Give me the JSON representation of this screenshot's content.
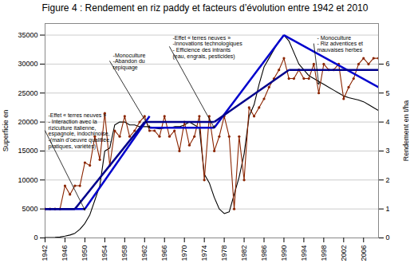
{
  "chart_data": {
    "type": "line",
    "title": "Figure 4 : Rendement en riz paddy et facteurs d’évolution entre 1942 et 2010",
    "x": [
      1942,
      1943,
      1944,
      1945,
      1946,
      1947,
      1948,
      1949,
      1950,
      1951,
      1952,
      1953,
      1954,
      1955,
      1956,
      1957,
      1958,
      1959,
      1960,
      1961,
      1962,
      1963,
      1964,
      1965,
      1966,
      1967,
      1968,
      1969,
      1970,
      1971,
      1972,
      1973,
      1974,
      1975,
      1976,
      1977,
      1978,
      1979,
      1980,
      1981,
      1982,
      1983,
      1984,
      1985,
      1986,
      1987,
      1988,
      1989,
      1990,
      1991,
      1992,
      1993,
      1994,
      1995,
      1996,
      1997,
      1998,
      1999,
      2000,
      2001,
      2002,
      2003,
      2004,
      2005,
      2006,
      2007,
      2008,
      2009
    ],
    "xlim": [
      1942,
      2009
    ],
    "xticks": [
      1942,
      1946,
      1950,
      1954,
      1958,
      1962,
      1966,
      1970,
      1974,
      1978,
      1982,
      1986,
      1990,
      1994,
      1998,
      2002,
      2006
    ],
    "ylim": [
      0,
      37000
    ],
    "yticks": [
      0,
      5000,
      10000,
      15000,
      20000,
      25000,
      30000,
      35000
    ],
    "ylabel": "Superficie en",
    "y2lim": [
      0,
      7.4
    ],
    "y2ticks": [
      0,
      1,
      2,
      3,
      4,
      5,
      6
    ],
    "y2label": "Rendement en t/ha",
    "grid": true,
    "series": [
      {
        "color": "black",
        "values": [
          50,
          70,
          100,
          150,
          300,
          500,
          800,
          1500,
          2500,
          4000,
          6500,
          9000,
          15000,
          15500,
          19500,
          20000,
          20000,
          19500,
          19500,
          19200,
          19200,
          19200,
          19000,
          18800,
          19000,
          19000,
          19200,
          19200,
          19500,
          20000,
          19500,
          19000,
          11000,
          9500,
          7000,
          5000,
          4200,
          4500,
          7500,
          10500,
          14500,
          21000,
          23000,
          26500,
          29500,
          31000,
          32500,
          34000,
          35000,
          34000,
          32000,
          30000,
          29000,
          28000,
          27500,
          27000,
          26500,
          26000,
          25500,
          25000,
          24500,
          24200,
          24000,
          23800,
          23500,
          23000,
          22500,
          22000
        ]
      },
      {
        "color": "#8b2500",
        "axis": "y2",
        "marker": "circle",
        "values": [
          1.0,
          1.0,
          1.0,
          1.0,
          1.8,
          1.5,
          1.8,
          1.8,
          2.6,
          2.5,
          3.5,
          2.7,
          4.3,
          2.5,
          3.7,
          3.5,
          4.2,
          3.5,
          3.7,
          4.0,
          4.2,
          3.7,
          3.7,
          3.5,
          4.2,
          3.5,
          3.7,
          3.0,
          4.0,
          3.2,
          3.5,
          4.2,
          2.0,
          4.2,
          3.0,
          3.5,
          4.2,
          3.5,
          1.0,
          3.5,
          2.0,
          4.5,
          4.2,
          4.5,
          4.8,
          5.2,
          5.5,
          5.8,
          6.2,
          5.5,
          5.5,
          5.8,
          5.5,
          5.5,
          6.0,
          5.0,
          6.0,
          5.8,
          5.8,
          6.0,
          4.8,
          5.2,
          5.5,
          6.0,
          6.2,
          6.0,
          6.2,
          6.2
        ]
      },
      {
        "type": "segment",
        "color": "#0000cd",
        "segments": [
          {
            "x1": 1942,
            "x2": 1950,
            "y1": 5000,
            "y2": 5000
          },
          {
            "x1": 1950,
            "x2": 1963,
            "y1": 5000,
            "y2": 21000
          },
          {
            "x1": 1963,
            "x2": 1976,
            "y1": 19000,
            "y2": 19000
          },
          {
            "x1": 1976,
            "x2": 1990,
            "y1": 19000,
            "y2": 35000
          },
          {
            "x1": 1990,
            "x2": 2009,
            "y1": 35000,
            "y2": 26000
          }
        ]
      },
      {
        "type": "segment",
        "color": "#00008b",
        "axis": "y2",
        "segments": [
          {
            "x1": 1942,
            "x2": 1948,
            "y1": 1.0,
            "y2": 1.0
          },
          {
            "x1": 1948,
            "x2": 1962,
            "y1": 1.0,
            "y2": 4.0
          },
          {
            "x1": 1962,
            "x2": 1976,
            "y1": 4.0,
            "y2": 4.0
          },
          {
            "x1": 1976,
            "x2": 1991,
            "y1": 4.0,
            "y2": 5.8
          },
          {
            "x1": 1991,
            "x2": 2009,
            "y1": 5.8,
            "y2": 5.8
          }
        ]
      }
    ],
    "annotations": [
      {
        "text": "-Effet « terres neuves »\n- Interaction avec la\nriziculture italienne,\nespagnole, indochinoise,\n-(main d’oeuvre qualifiée,\npratiques, variétés)",
        "x": 1950,
        "y": 4800,
        "text_x": 1942,
        "text_y": 18500
      },
      {
        "text": "-Monoculture\n-Abandon du\nrepiquage",
        "x": 1963,
        "y": 19000,
        "text_x": 1955,
        "text_y": 30500
      },
      {
        "text": "-Effet « terres neuves »\n-Innovations technologiques\n- Efficience des intrants\n(eau, engrais, pesticides)",
        "x": 1976,
        "y": 19000,
        "text_x": 1967,
        "text_y": 33000
      },
      {
        "text": "- Monoculture\n- Riz adventices et\nmauvaises herbes",
        "x": 1997,
        "y": 26500,
        "text_x": 1996,
        "text_y": 33500
      }
    ]
  }
}
